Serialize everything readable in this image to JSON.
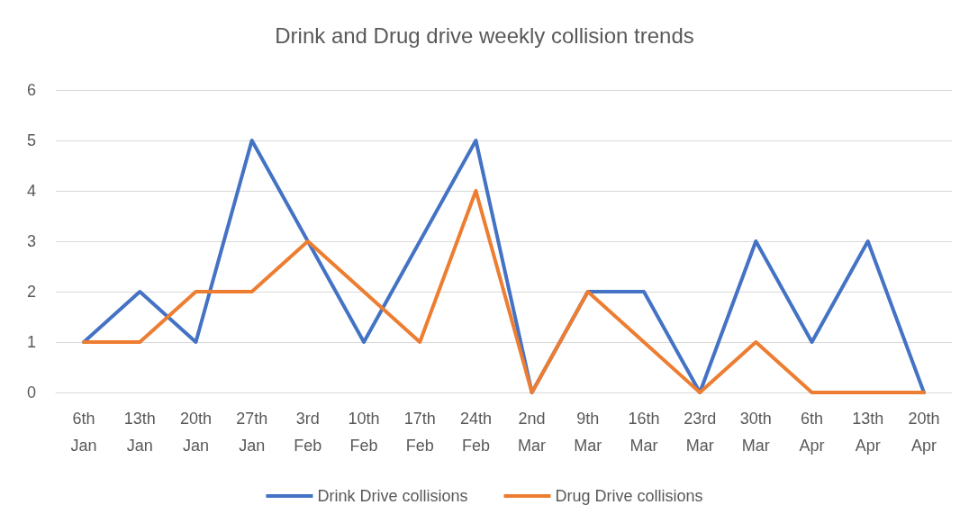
{
  "chart_data": {
    "type": "line",
    "title": "Drink and Drug drive weekly collision trends",
    "categories": [
      "6th\nJan",
      "13th\nJan",
      "20th\nJan",
      "27th\nJan",
      "3rd\nFeb",
      "10th\nFeb",
      "17th\nFeb",
      "24th\nFeb",
      "2nd\nMar",
      "9th\nMar",
      "16th\nMar",
      "23rd\nMar",
      "30th\nMar",
      "6th\nApr",
      "13th\nApr",
      "20th\nApr"
    ],
    "series": [
      {
        "name": "Drink Drive collisions",
        "color": "#4472c4",
        "values": [
          1,
          2,
          1,
          5,
          3,
          1,
          3,
          5,
          0,
          2,
          2,
          0,
          3,
          1,
          3,
          0
        ]
      },
      {
        "name": "Drug Drive collisions",
        "color": "#ed7d31",
        "values": [
          1,
          1,
          2,
          2,
          3,
          2,
          1,
          4,
          0,
          2,
          1,
          0,
          1,
          0,
          0,
          0
        ]
      }
    ],
    "ylim": [
      0,
      6
    ],
    "yticks": [
      0,
      1,
      2,
      3,
      4,
      5,
      6
    ],
    "grid": "y",
    "legend": "bottom",
    "marker": "none",
    "line_style": "solid"
  }
}
